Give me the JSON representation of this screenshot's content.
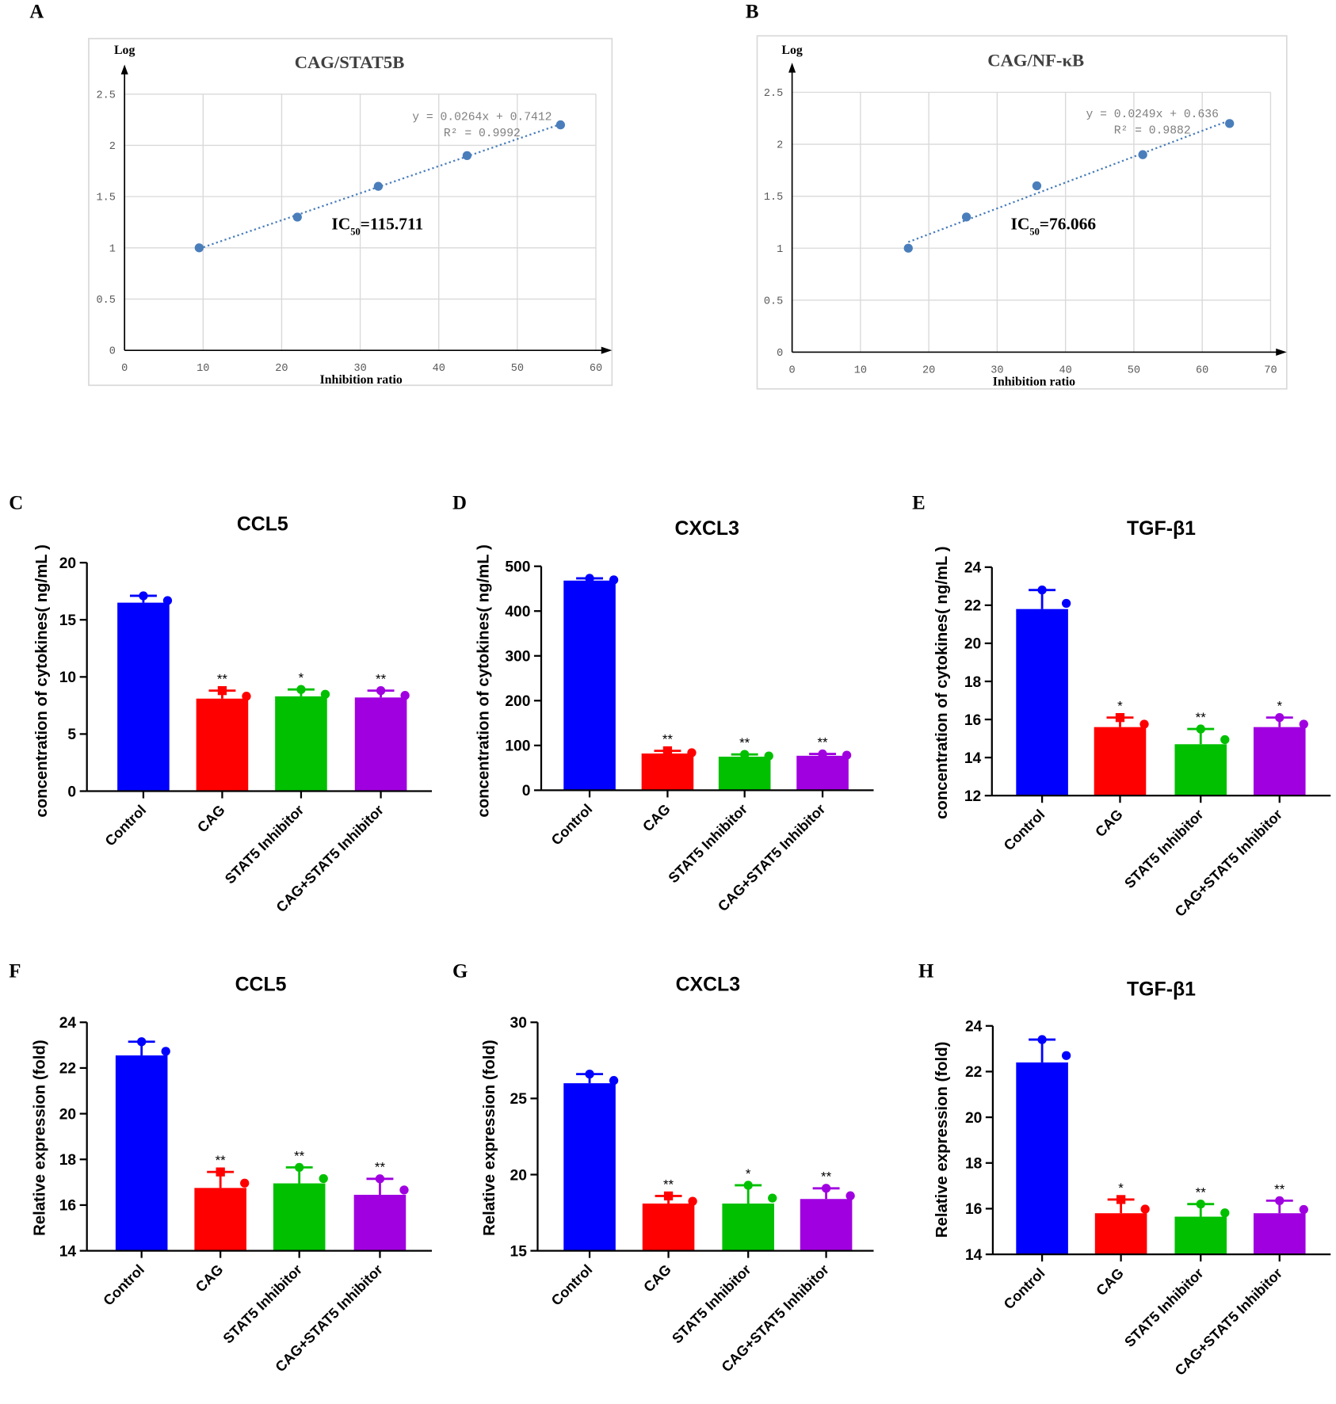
{
  "chart_data": [
    {
      "panel": "A",
      "type": "scatter",
      "title": "CAG/STAT5B",
      "xlabel": "Inhibition ratio",
      "ylabel": "Log",
      "xlim": [
        0,
        60
      ],
      "ylim": [
        0,
        2.5
      ],
      "xticks": [
        0,
        10,
        20,
        30,
        40,
        50,
        60
      ],
      "yticks": [
        0,
        0.5,
        1,
        1.5,
        2,
        2.5
      ],
      "xtick_labels": [
        "0",
        "10",
        "20",
        "30",
        "40",
        "50",
        "60"
      ],
      "ytick_labels": [
        "0",
        "0.5",
        "1",
        "1.5",
        "2",
        "2.5"
      ],
      "grid": true,
      "x": [
        9.5,
        22,
        32.3,
        43.6,
        55.5
      ],
      "y": [
        1.0,
        1.3,
        1.6,
        1.9,
        2.2
      ],
      "trendline": {
        "slope": 0.0264,
        "intercept": 0.7412
      },
      "equation": "y = 0.0264x + 0.7412",
      "r2": "R² = 0.9992",
      "ic50_label": "IC",
      "ic50_sub": "50",
      "ic50_value": "=115.711",
      "color": "#4a7ebb"
    },
    {
      "panel": "B",
      "type": "scatter",
      "title": "CAG/NF-κB",
      "xlabel": "Inhibition ratio",
      "ylabel": "Log",
      "xlim": [
        0,
        70
      ],
      "ylim": [
        0,
        2.5
      ],
      "xticks": [
        0,
        10,
        20,
        30,
        40,
        50,
        60,
        70
      ],
      "yticks": [
        0,
        0.5,
        1,
        1.5,
        2,
        2.5
      ],
      "xtick_labels": [
        "0",
        "10",
        "20",
        "30",
        "40",
        "50",
        "60",
        "70"
      ],
      "ytick_labels": [
        "0",
        "0.5",
        "1",
        "1.5",
        "2",
        "2.5"
      ],
      "grid": true,
      "x": [
        17,
        25.5,
        35.8,
        51.3,
        64
      ],
      "y": [
        1.0,
        1.3,
        1.6,
        1.9,
        2.2
      ],
      "trendline": {
        "slope": 0.0249,
        "intercept": 0.636
      },
      "equation": "y = 0.0249x + 0.636",
      "r2": "R² = 0.9882",
      "ic50_label": "IC",
      "ic50_sub": "50",
      "ic50_value": "=76.066",
      "color": "#4a7ebb"
    },
    {
      "panel": "C",
      "type": "bar",
      "title": "CCL5",
      "ylabel": "concentration of cytokines( ng/mL )",
      "categories": [
        "Control",
        "CAG",
        "STAT5 Inhibitor",
        "CAG+STAT5 Inhibitor"
      ],
      "values": [
        16.5,
        8.1,
        8.3,
        8.2
      ],
      "errors": [
        0.6,
        0.7,
        0.6,
        0.6
      ],
      "significance": [
        "",
        "**",
        "*",
        "**"
      ],
      "ylim": [
        0,
        20
      ],
      "yticks": [
        0,
        5,
        10,
        15,
        20
      ],
      "ytick_labels": [
        "0",
        "5",
        "10",
        "15",
        "20"
      ],
      "colors": [
        "#0000ff",
        "#ff0000",
        "#00c000",
        "#a000e0"
      ]
    },
    {
      "panel": "D",
      "type": "bar",
      "title": "CXCL3",
      "ylabel": "concentration of cytokines( ng/mL )",
      "categories": [
        "Control",
        "CAG",
        "STAT5 Inhibitor",
        "CAG+STAT5 Inhibitor"
      ],
      "values": [
        468,
        82,
        75,
        77
      ],
      "errors": [
        5,
        6,
        5,
        4
      ],
      "significance": [
        "",
        "**",
        "**",
        "**"
      ],
      "ylim": [
        0,
        500
      ],
      "yticks": [
        0,
        100,
        200,
        300,
        400,
        500
      ],
      "ytick_labels": [
        "0",
        "100",
        "200",
        "300",
        "400",
        "500"
      ],
      "colors": [
        "#0000ff",
        "#ff0000",
        "#00c000",
        "#a000e0"
      ]
    },
    {
      "panel": "E",
      "type": "bar",
      "title": "TGF-β1",
      "ylabel": "concentration of cytokines( ng/mL )",
      "categories": [
        "Control",
        "CAG",
        "STAT5 Inhibitor",
        "CAG+STAT5 Inhibitor"
      ],
      "values": [
        21.8,
        15.6,
        14.7,
        15.6
      ],
      "errors": [
        1.0,
        0.5,
        0.8,
        0.5
      ],
      "significance": [
        "",
        "*",
        "**",
        "*"
      ],
      "ylim": [
        12,
        24
      ],
      "yticks": [
        12,
        14,
        16,
        18,
        20,
        22,
        24
      ],
      "ytick_labels": [
        "12",
        "14",
        "16",
        "18",
        "20",
        "22",
        "24"
      ],
      "colors": [
        "#0000ff",
        "#ff0000",
        "#00c000",
        "#a000e0"
      ]
    },
    {
      "panel": "F",
      "type": "bar",
      "title": "CCL5",
      "ylabel": "Relative expression (fold)",
      "categories": [
        "Control",
        "CAG",
        "STAT5 Inhibitor",
        "CAG+STAT5 Inhibitor"
      ],
      "values": [
        22.55,
        16.75,
        16.95,
        16.45
      ],
      "errors": [
        0.6,
        0.7,
        0.7,
        0.7
      ],
      "significance": [
        "",
        "**",
        "**",
        "**"
      ],
      "ylim": [
        14,
        24
      ],
      "yticks": [
        14,
        16,
        18,
        20,
        22,
        24
      ],
      "ytick_labels": [
        "14",
        "16",
        "18",
        "20",
        "22",
        "24"
      ],
      "colors": [
        "#0000ff",
        "#ff0000",
        "#00c000",
        "#a000e0"
      ]
    },
    {
      "panel": "G",
      "type": "bar",
      "title": "CXCL3",
      "ylabel": "Relative expression (fold)",
      "categories": [
        "Control",
        "CAG",
        "STAT5 Inhibitor",
        "CAG+STAT5 Inhibitor"
      ],
      "values": [
        26.0,
        18.1,
        18.1,
        18.4
      ],
      "errors": [
        0.6,
        0.5,
        1.2,
        0.7
      ],
      "significance": [
        "",
        "**",
        "*",
        "**"
      ],
      "ylim": [
        15,
        30
      ],
      "yticks": [
        15,
        20,
        25,
        30
      ],
      "ytick_labels": [
        "15",
        "20",
        "25",
        "30"
      ],
      "colors": [
        "#0000ff",
        "#ff0000",
        "#00c000",
        "#a000e0"
      ]
    },
    {
      "panel": "H",
      "type": "bar",
      "title": "TGF-β1",
      "ylabel": "Relative expression (fold)",
      "categories": [
        "Control",
        "CAG",
        "STAT5 Inhibitor",
        "CAG+STAT5 Inhibitor"
      ],
      "values": [
        22.4,
        15.8,
        15.65,
        15.8
      ],
      "errors": [
        1.0,
        0.6,
        0.55,
        0.55
      ],
      "significance": [
        "",
        "*",
        "**",
        "**"
      ],
      "ylim": [
        14,
        24
      ],
      "yticks": [
        14,
        16,
        18,
        20,
        22,
        24
      ],
      "ytick_labels": [
        "14",
        "16",
        "18",
        "20",
        "22",
        "24"
      ],
      "colors": [
        "#0000ff",
        "#ff0000",
        "#00c000",
        "#a000e0"
      ]
    }
  ]
}
